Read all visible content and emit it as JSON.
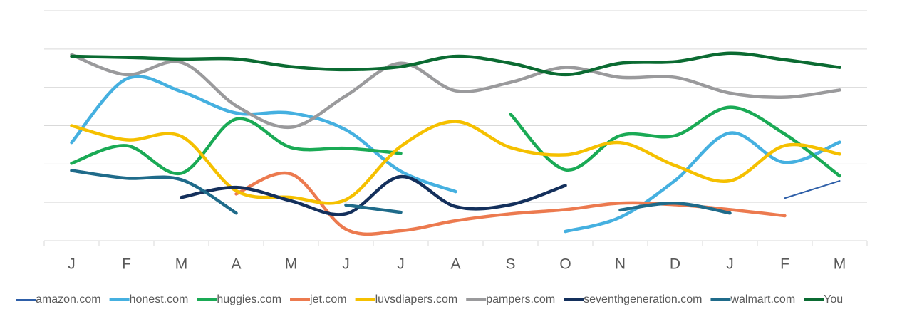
{
  "chart_data": {
    "type": "line",
    "categories": [
      "J",
      "F",
      "M",
      "A",
      "M",
      "J",
      "J",
      "A",
      "S",
      "O",
      "N",
      "D",
      "J",
      "F",
      "M"
    ],
    "ylim": [
      0,
      6
    ],
    "yticks": [
      0,
      1,
      2,
      3,
      4,
      5,
      6
    ],
    "grid": true,
    "legend": "bottom",
    "series": [
      {
        "name": "amazon.com",
        "color": "#2e5fa8",
        "values": [
          null,
          null,
          null,
          null,
          null,
          null,
          null,
          null,
          null,
          null,
          null,
          null,
          null,
          1.11,
          1.56
        ]
      },
      {
        "name": "honest.com",
        "color": "#45b0e0",
        "values": [
          2.56,
          4.22,
          3.89,
          3.33,
          3.33,
          2.89,
          1.81,
          1.28,
          null,
          0.24,
          0.61,
          1.57,
          2.81,
          2.04,
          2.57
        ]
      },
      {
        "name": "huggies.com",
        "color": "#1aaa55",
        "values": [
          2.02,
          2.48,
          1.76,
          3.17,
          2.43,
          2.41,
          2.28,
          null,
          3.3,
          1.85,
          2.74,
          2.74,
          3.48,
          2.78,
          1.69
        ]
      },
      {
        "name": "jet.com",
        "color": "#ec7a4f",
        "values": [
          null,
          null,
          null,
          1.22,
          1.74,
          0.3,
          0.26,
          0.52,
          0.7,
          0.81,
          0.98,
          0.94,
          0.81,
          0.65,
          null
        ]
      },
      {
        "name": "luvsdiapers.com",
        "color": "#f5c000",
        "values": [
          3.0,
          2.63,
          2.72,
          1.3,
          1.13,
          1.07,
          2.46,
          3.11,
          2.43,
          2.24,
          2.56,
          1.96,
          1.56,
          2.48,
          2.26
        ]
      },
      {
        "name": "pampers.com",
        "color": "#9a9a9c",
        "values": [
          4.85,
          4.33,
          4.65,
          3.52,
          2.96,
          3.78,
          4.63,
          3.91,
          4.13,
          4.52,
          4.26,
          4.26,
          3.85,
          3.74,
          3.93
        ]
      },
      {
        "name": "seventhgeneration.com",
        "color": "#14305c",
        "values": [
          null,
          null,
          1.13,
          1.39,
          1.04,
          0.7,
          1.67,
          0.89,
          0.94,
          1.44,
          null,
          null,
          null,
          null,
          null
        ]
      },
      {
        "name": "walmart.com",
        "color": "#1f6b8a",
        "values": [
          1.83,
          1.63,
          1.59,
          0.72,
          null,
          0.93,
          0.74,
          null,
          null,
          null,
          0.8,
          0.98,
          0.72,
          null,
          null
        ]
      },
      {
        "name": "You",
        "color": "#0b6b32",
        "values": [
          4.81,
          4.78,
          4.74,
          4.74,
          4.54,
          4.46,
          4.54,
          4.81,
          4.63,
          4.33,
          4.63,
          4.67,
          4.89,
          4.72,
          4.52
        ]
      }
    ]
  }
}
